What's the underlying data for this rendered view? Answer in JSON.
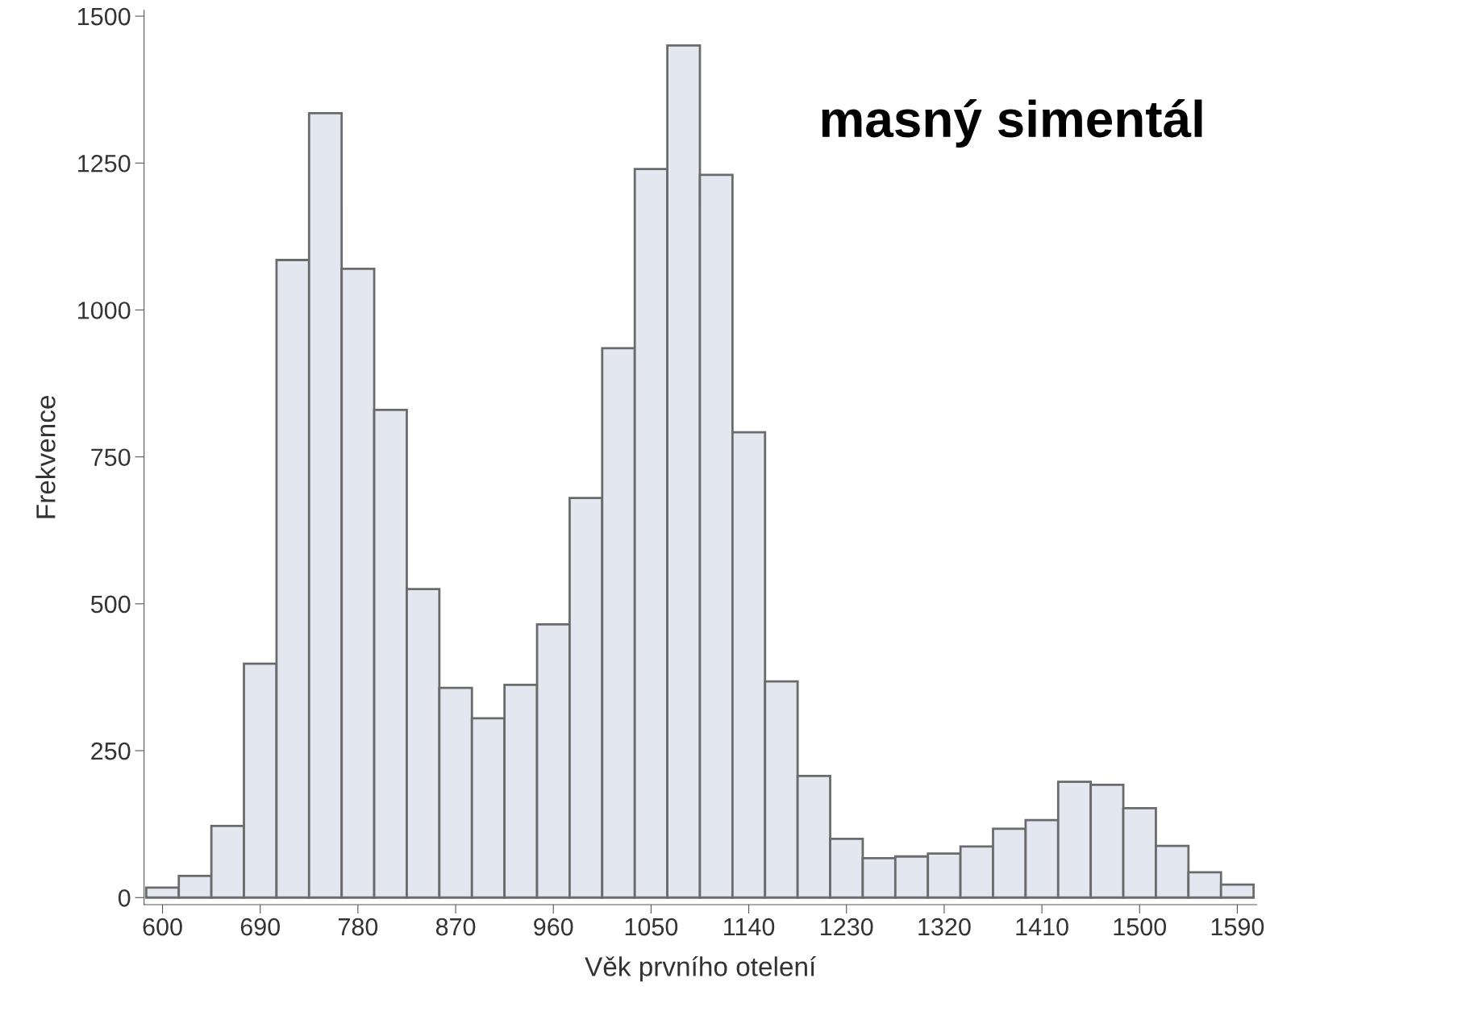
{
  "chart_data": {
    "type": "histogram",
    "xlabel": "Věk prvního otelení",
    "ylabel": "Frekvence",
    "annotations": [
      "masný simentál"
    ],
    "bins": [
      585,
      615,
      645,
      675,
      705,
      735,
      765,
      795,
      825,
      855,
      885,
      915,
      945,
      975,
      1005,
      1035,
      1065,
      1095,
      1125,
      1155,
      1185,
      1215,
      1245,
      1275,
      1305,
      1335,
      1365,
      1395,
      1425,
      1455,
      1485,
      1515,
      1545,
      1575,
      1605
    ],
    "values": [
      17,
      37,
      122,
      398,
      1085,
      1335,
      1070,
      830,
      525,
      357,
      305,
      362,
      465,
      680,
      935,
      1240,
      1450,
      1230,
      792,
      368,
      207,
      100,
      67,
      70,
      75,
      87,
      117,
      132,
      197,
      192,
      152,
      88,
      43,
      22
    ],
    "color": "#e3e7f0",
    "xlim": [
      583,
      1608
    ],
    "xticks": [
      600,
      690,
      780,
      870,
      960,
      1050,
      1140,
      1230,
      1320,
      1410,
      1500,
      1590
    ],
    "ylim": [
      -12,
      1510
    ],
    "yticks": [
      0,
      250,
      500,
      750,
      1000,
      1250,
      1500
    ],
    "grid": false,
    "legend": false
  }
}
